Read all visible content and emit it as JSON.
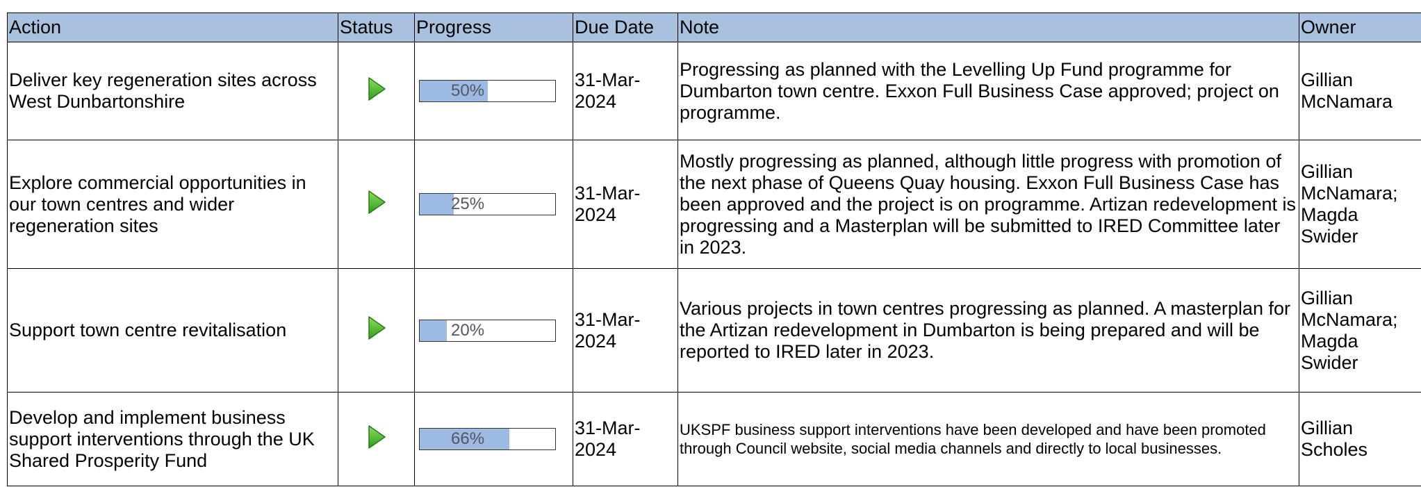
{
  "table": {
    "columns": [
      "Action",
      "Status",
      "Progress",
      "Due Date",
      "Note",
      "Owner"
    ],
    "rows": [
      {
        "action": "Deliver key regeneration sites across West Dunbartonshire",
        "progress": 50,
        "progress_label": "50%",
        "due_date": "31-Mar-2024",
        "note": "Progressing as planned with the Levelling Up Fund programme for Dumbarton town centre. Exxon Full Business Case approved; project on programme.",
        "owner": "Gillian McNamara"
      },
      {
        "action": "Explore commercial opportunities in our town centres and wider regeneration sites",
        "progress": 25,
        "progress_label": "25%",
        "due_date": "31-Mar-2024",
        "note": "Mostly progressing as planned, although little progress with promotion of the next phase of Queens Quay housing. Exxon Full Business Case has been approved and the project is on programme. Artizan redevelopment is progressing and a Masterplan will be submitted to IRED Committee later in 2023.",
        "owner": "Gillian McNamara; Magda Swider"
      },
      {
        "action": "Support town centre revitalisation",
        "progress": 20,
        "progress_label": "20%",
        "due_date": "31-Mar-2024",
        "note": "Various projects in town centres progressing as planned. A masterplan for the Artizan redevelopment in Dumbarton is being prepared and will be reported to IRED later in 2023.",
        "owner": "Gillian McNamara; Magda Swider"
      },
      {
        "action": "Develop and implement business support interventions through the UK Shared Prosperity Fund",
        "progress": 66,
        "progress_label": "66%",
        "due_date": "31-Mar-2024",
        "note": "UKSPF business support interventions have been developed and have been promoted through Council website, social media channels and directly to local businesses.",
        "owner": "Gillian Scholes"
      }
    ]
  }
}
